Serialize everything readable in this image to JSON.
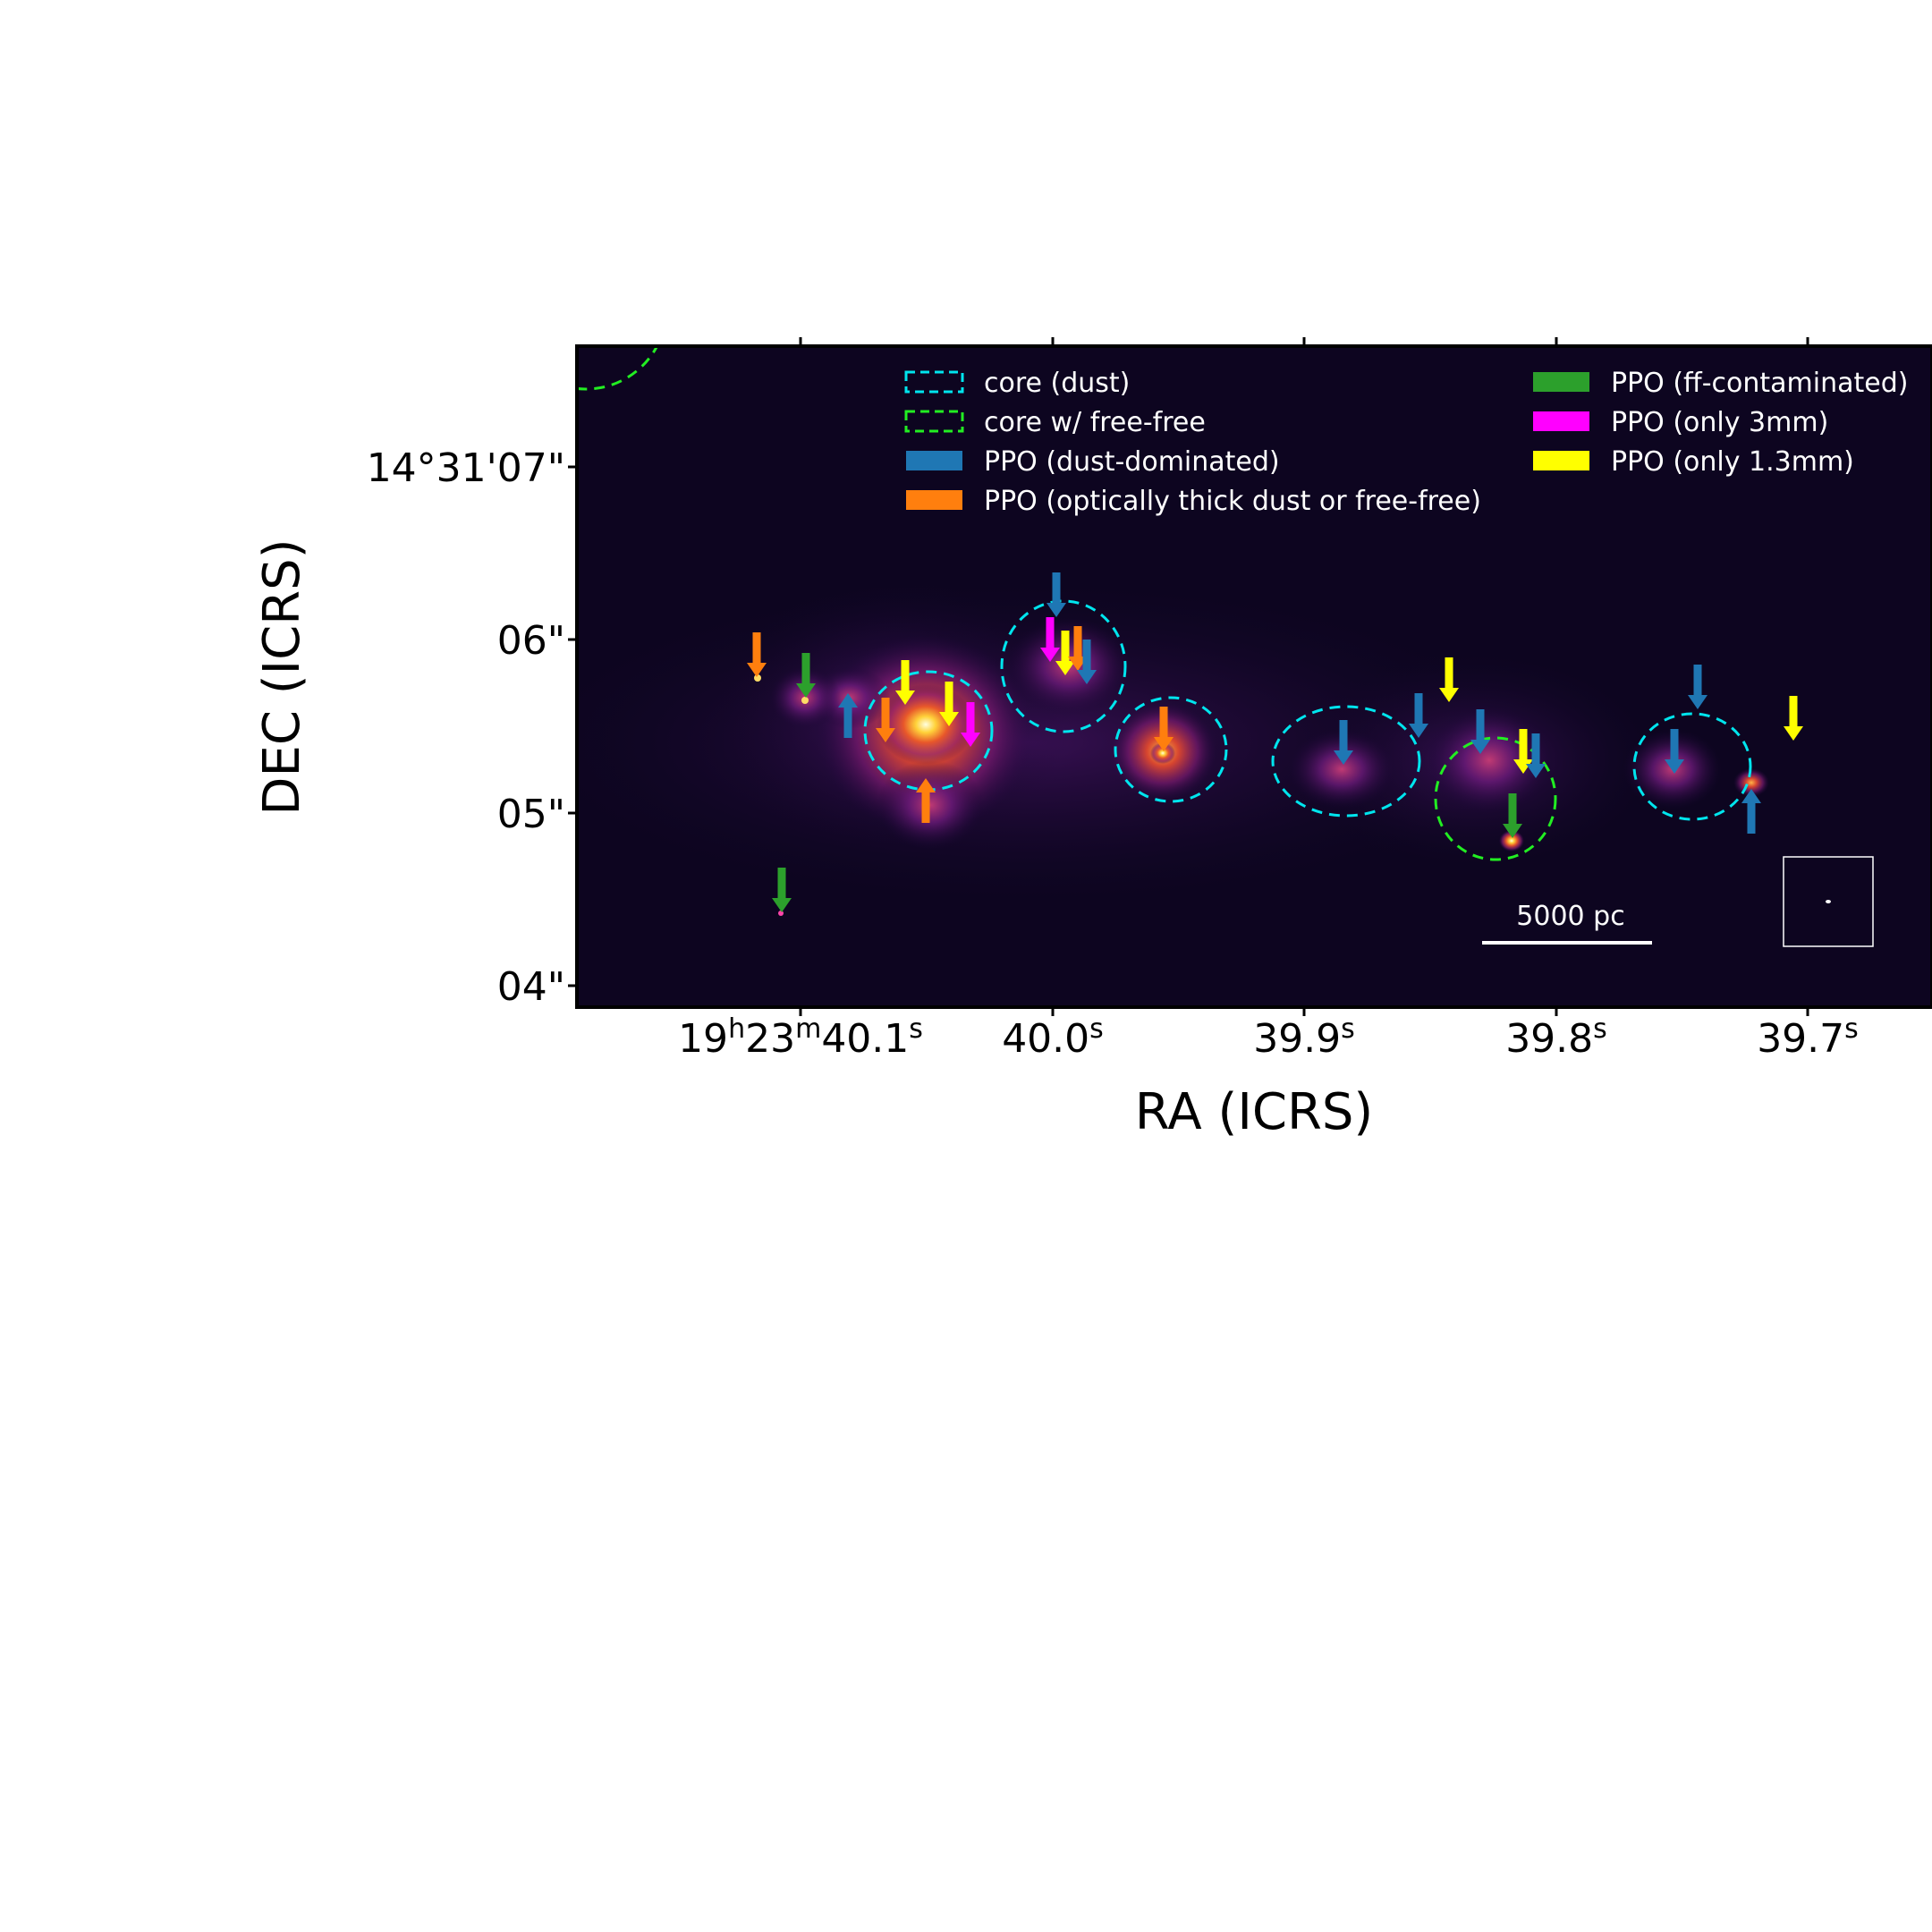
{
  "axes": {
    "xlabel": "RA (ICRS)",
    "ylabel": "DEC (ICRS)",
    "xticks": [
      {
        "label": "19h23m40.1s"
      },
      {
        "label": "40.0s"
      },
      {
        "label": "39.9s"
      },
      {
        "label": "39.8s"
      },
      {
        "label": "39.7s"
      }
    ],
    "yticks": [
      {
        "label": "14°31'07\""
      },
      {
        "label": "06\""
      },
      {
        "label": "05\""
      },
      {
        "label": "04\""
      }
    ]
  },
  "legend": [
    {
      "label": "core (dust)",
      "color": "#00e5ee",
      "style": "dashed"
    },
    {
      "label": "core w/ free-free",
      "color": "#22ee22",
      "style": "dashed"
    },
    {
      "label": "PPO (dust-dominated)",
      "color": "#1f77b4",
      "style": "filled"
    },
    {
      "label": "PPO (optically thick dust or free-free)",
      "color": "#ff7f0e",
      "style": "filled"
    },
    {
      "label": "PPO (ff-contaminated)",
      "color": "#2ca02c",
      "style": "filled"
    },
    {
      "label": "PPO (only 3mm)",
      "color": "#ff00ff",
      "style": "filled"
    },
    {
      "label": "PPO (only 1.3mm)",
      "color": "#ffff00",
      "style": "filled"
    }
  ],
  "scalebar": {
    "label": "5000 pc"
  },
  "colors": {
    "background": "#0d0520",
    "dust_core": "#00e5ee",
    "freefree_core": "#22ee22",
    "dust_dominated": "#1f77b4",
    "optically_thick": "#ff7f0e",
    "ff_contaminated": "#2ca02c",
    "only_3mm": "#ff00ff",
    "only_1p3mm": "#ffff00"
  },
  "colormap": "inferno"
}
